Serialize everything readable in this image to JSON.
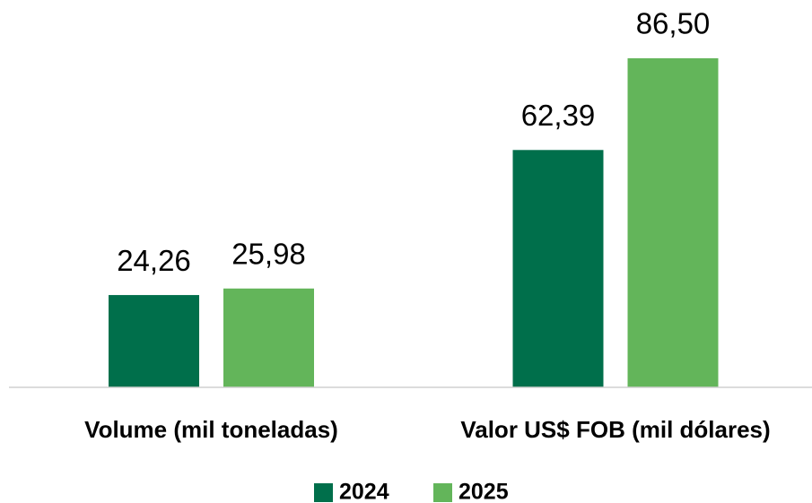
{
  "chart_data": {
    "type": "bar",
    "categories": [
      "Volume (mil toneladas)",
      "Valor US$ FOB (mil dólares)"
    ],
    "series": [
      {
        "name": "2024",
        "color": "#006f4b",
        "values": [
          24.26,
          62.39
        ],
        "value_labels": [
          "24,26",
          "62,39"
        ]
      },
      {
        "name": "2025",
        "color": "#63b55a",
        "values": [
          25.98,
          86.5
        ],
        "value_labels": [
          "25,98",
          "86,50"
        ]
      }
    ],
    "legend": "bottom"
  }
}
